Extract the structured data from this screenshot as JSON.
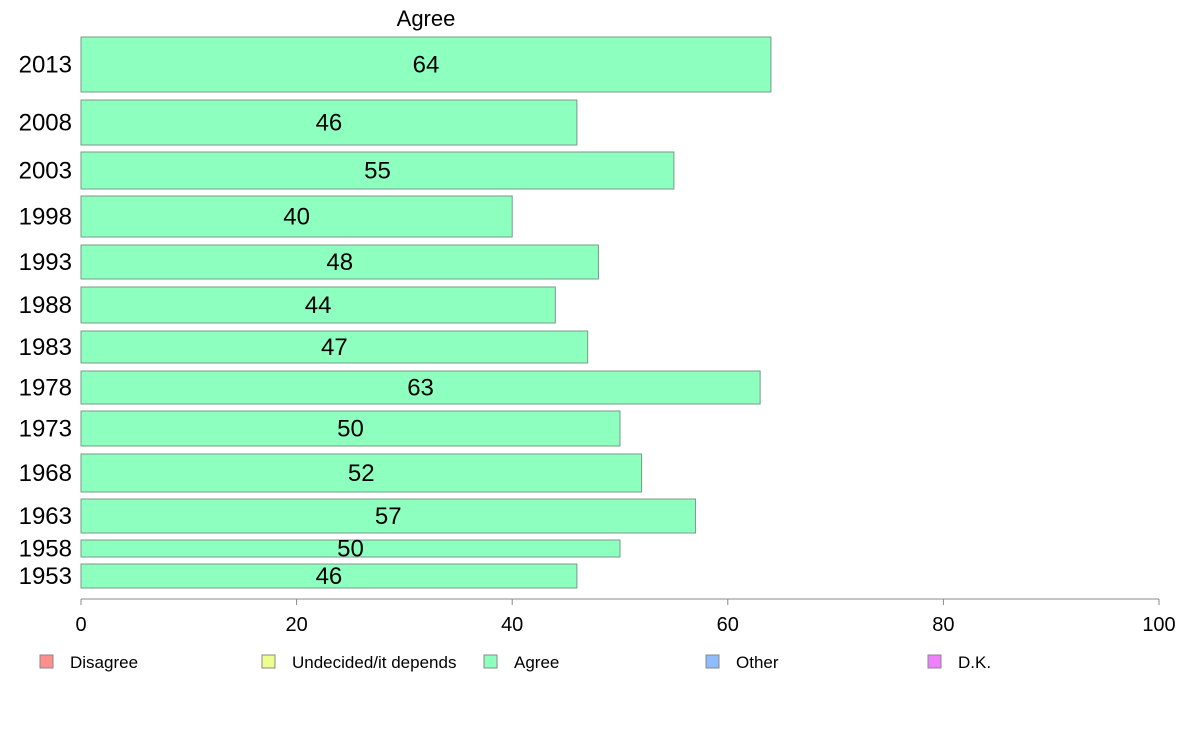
{
  "chart_data": {
    "type": "bar",
    "orientation": "horizontal",
    "title": "Agree",
    "categories": [
      "2013",
      "2008",
      "2003",
      "1998",
      "1993",
      "1988",
      "1983",
      "1978",
      "1973",
      "1968",
      "1963",
      "1958",
      "1953"
    ],
    "series": [
      {
        "name": "Agree",
        "color": "#8dffbe",
        "values": [
          64,
          46,
          55,
          40,
          48,
          44,
          47,
          63,
          50,
          52,
          57,
          50,
          46
        ]
      }
    ],
    "xlim": [
      0,
      100
    ],
    "xticks": [
      0,
      20,
      40,
      60,
      80,
      100
    ],
    "grid": false,
    "legend": {
      "position": "bottom",
      "items": [
        {
          "label": "Disagree",
          "color": "#ff8f8f"
        },
        {
          "label": "Undecided/it depends",
          "color": "#efff8f"
        },
        {
          "label": "Agree",
          "color": "#8dffbe"
        },
        {
          "label": "Other",
          "color": "#8fbcff"
        },
        {
          "label": "D.K.",
          "color": "#ef7fff"
        }
      ]
    }
  }
}
